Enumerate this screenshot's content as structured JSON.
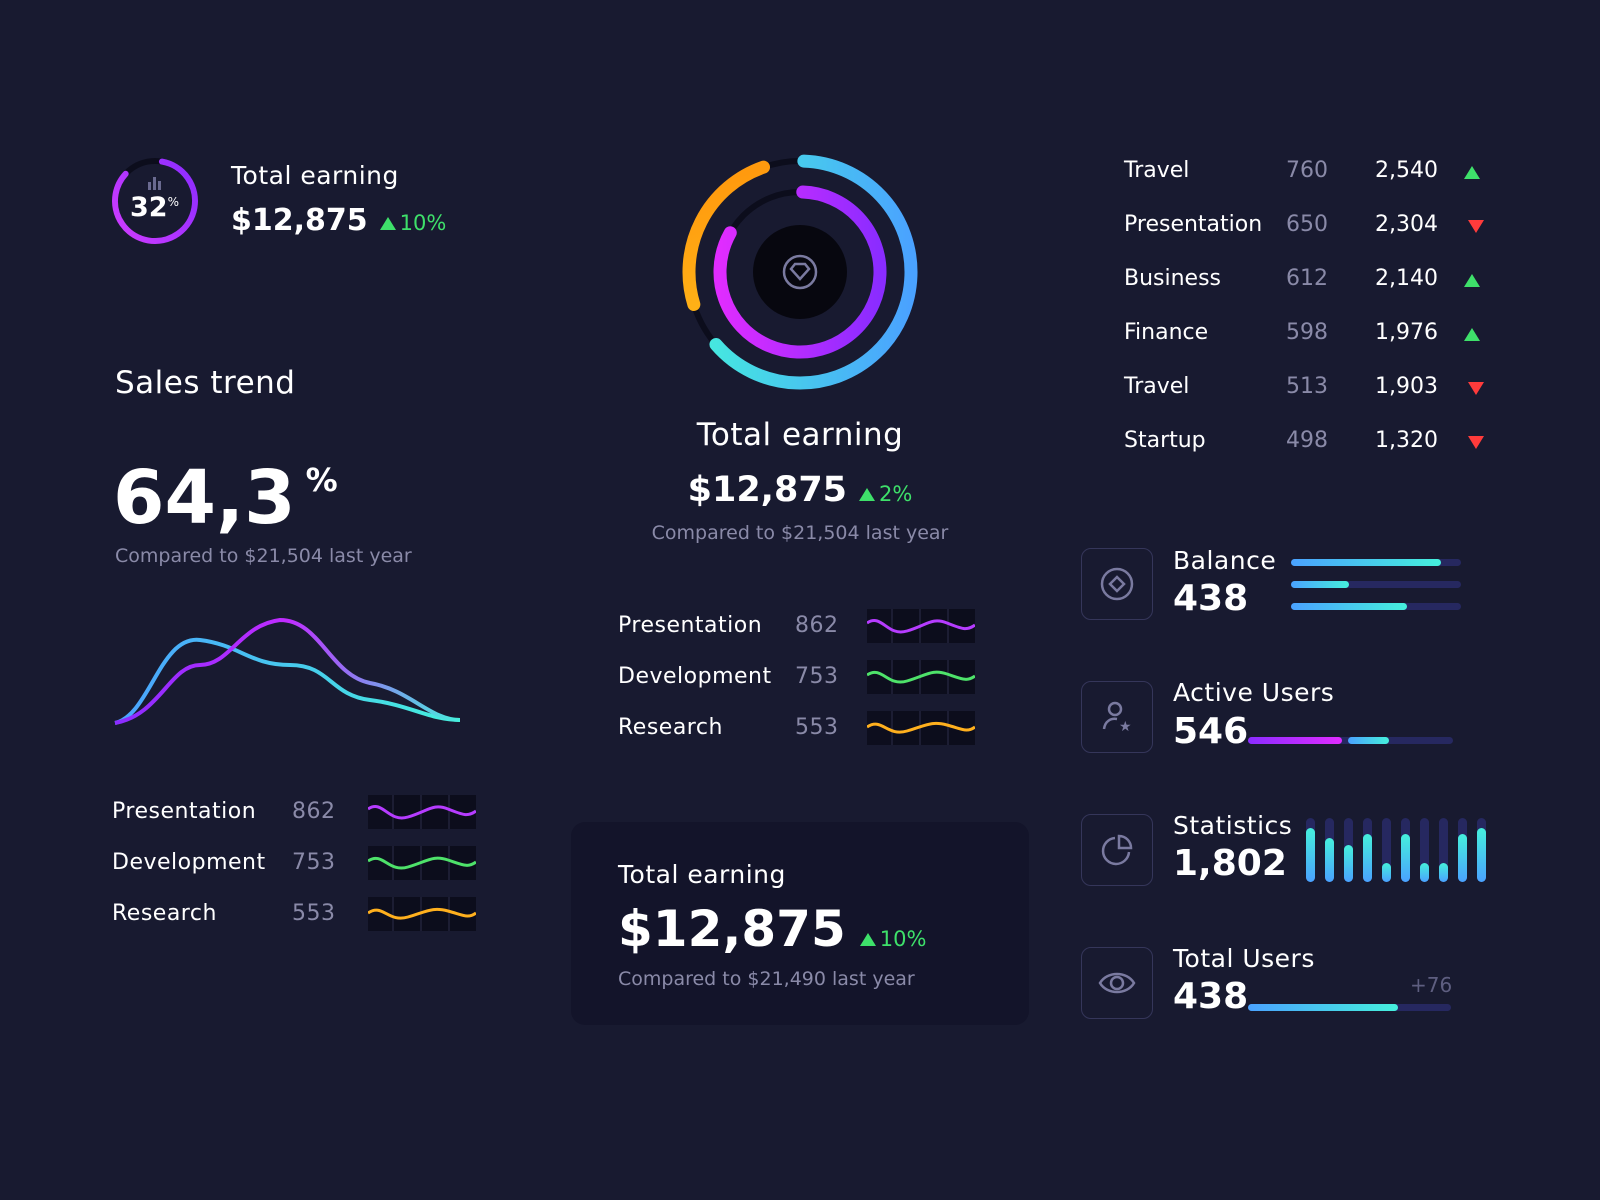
{
  "top_left": {
    "ring_percent": 32,
    "ring_value": "32",
    "ring_unit": "%",
    "title": "Total earning",
    "amount": "$12,875",
    "change": "10%",
    "icon": "bar-chart-icon"
  },
  "sales_trend": {
    "title": "Sales trend",
    "value": "64,3",
    "unit": "%",
    "compare": "Compared to $21,504 last year"
  },
  "left_list": [
    {
      "label": "Presentation",
      "value": "862",
      "color": "#b63cff"
    },
    {
      "label": "Development",
      "value": "753",
      "color": "#4ee26a"
    },
    {
      "label": "Research",
      "value": "553",
      "color": "#ffb01e"
    }
  ],
  "center": {
    "title": "Total earning",
    "amount": "$12,875",
    "change": "2%",
    "compare": "Compared to $21,504 last year",
    "icon": "diamond-icon"
  },
  "center_list": [
    {
      "label": "Presentation",
      "value": "862",
      "color": "#b63cff"
    },
    {
      "label": "Development",
      "value": "753",
      "color": "#4ee26a"
    },
    {
      "label": "Research",
      "value": "553",
      "color": "#ffb01e"
    }
  ],
  "card": {
    "title": "Total earning",
    "amount": "$12,875",
    "change": "10%",
    "compare": "Compared to $21,490 last year"
  },
  "table": [
    {
      "label": "Travel",
      "a": "760",
      "b": "2,540",
      "trend": "up"
    },
    {
      "label": "Presentation",
      "a": "650",
      "b": "2,304",
      "trend": "down"
    },
    {
      "label": "Business",
      "a": "612",
      "b": "2,140",
      "trend": "up"
    },
    {
      "label": "Finance",
      "a": "598",
      "b": "1,976",
      "trend": "up"
    },
    {
      "label": "Travel",
      "a": "513",
      "b": "1,903",
      "trend": "down"
    },
    {
      "label": "Startup",
      "a": "498",
      "b": "1,320",
      "trend": "down"
    }
  ],
  "stats": {
    "balance": {
      "label": "Balance",
      "value": "438",
      "icon": "coin-icon",
      "bars": [
        0.88,
        0.34,
        0.68
      ]
    },
    "active_users": {
      "label": "Active Users",
      "value": "546",
      "icon": "user-star-icon",
      "segments": [
        0.46,
        0.2
      ]
    },
    "statistics": {
      "label": "Statistics",
      "value": "1,802",
      "icon": "pie-chart-icon",
      "bars": [
        0.85,
        0.68,
        0.58,
        0.75,
        0.3,
        0.75,
        0.3,
        0.3,
        0.75,
        0.85
      ]
    },
    "total_users": {
      "label": "Total Users",
      "value": "438",
      "delta": "+76",
      "icon": "eye-icon",
      "progress": 0.74
    }
  },
  "colors": {
    "background": "#181a30",
    "up": "#3ee06a",
    "down": "#ff3b3b",
    "purple": "#b63cff",
    "cyan": "#45f0dc",
    "blue": "#4aa2ff",
    "orange": "#ffb01e"
  }
}
